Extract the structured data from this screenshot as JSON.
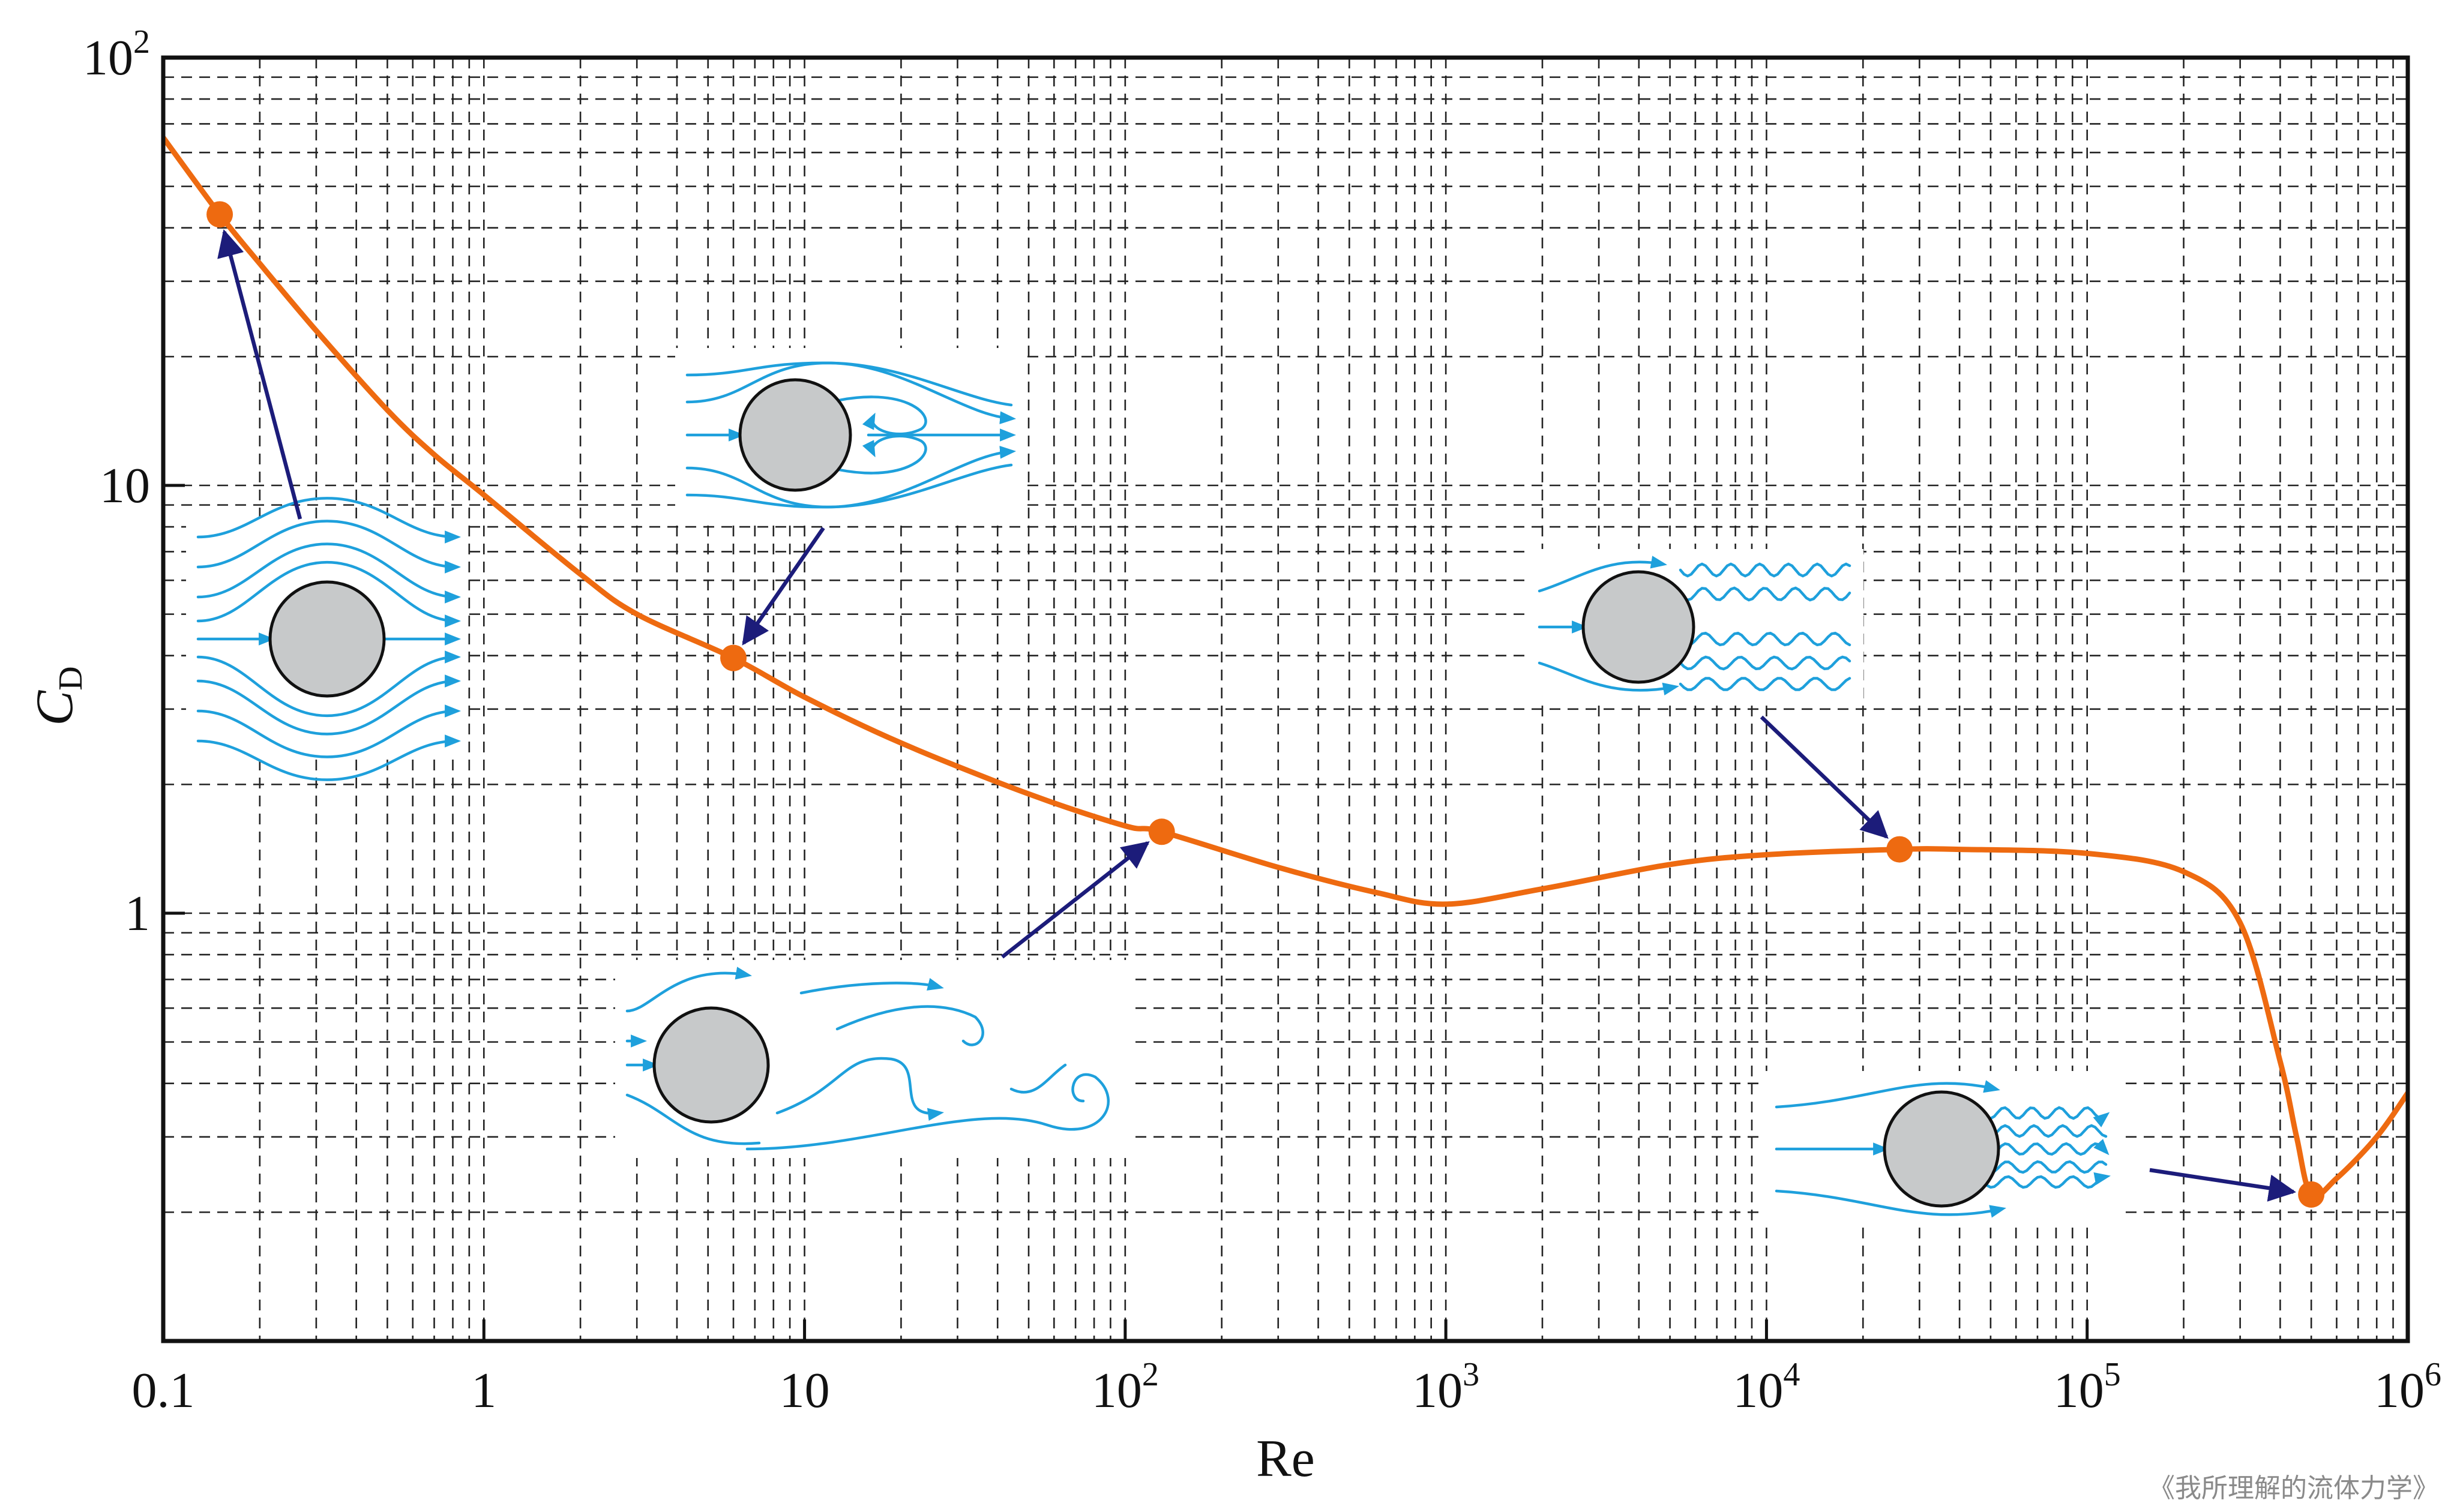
{
  "colors": {
    "curve": "#ee6a10",
    "point": "#ee6a10",
    "arrow": "#1c1c7a",
    "streamline": "#1ea0dc",
    "cylinder_fill": "#c7c9ca",
    "grid": "#222222"
  },
  "chart_data": {
    "type": "line",
    "scale": {
      "x": "log",
      "y": "log"
    },
    "xlim": [
      0.1,
      1000000
    ],
    "ylim": [
      0.1,
      100
    ],
    "grid": true,
    "xlabel": "Re",
    "ylabel": "C",
    "ylabel_subscript": "D",
    "xticks": [
      {
        "value": 0.1,
        "base": "0.1",
        "exp": ""
      },
      {
        "value": 1,
        "base": "1",
        "exp": ""
      },
      {
        "value": 10,
        "base": "10",
        "exp": ""
      },
      {
        "value": 100,
        "base": "10",
        "exp": "2"
      },
      {
        "value": 1000,
        "base": "10",
        "exp": "3"
      },
      {
        "value": 10000,
        "base": "10",
        "exp": "4"
      },
      {
        "value": 100000,
        "base": "10",
        "exp": "5"
      },
      {
        "value": 1000000,
        "base": "10",
        "exp": "6"
      }
    ],
    "yticks": [
      {
        "value": 1,
        "base": "1",
        "exp": ""
      },
      {
        "value": 10,
        "base": "10",
        "exp": ""
      },
      {
        "value": 100,
        "base": "10",
        "exp": "2"
      }
    ],
    "series": [
      {
        "points": [
          [
            0.1,
            65
          ],
          [
            0.15,
            43
          ],
          [
            0.2,
            33
          ],
          [
            0.3,
            23
          ],
          [
            0.5,
            15
          ],
          [
            0.7,
            11.8
          ],
          [
            1,
            9.5
          ],
          [
            2,
            6.2
          ],
          [
            3,
            5
          ],
          [
            6,
            3.95
          ],
          [
            10,
            3.2
          ],
          [
            20,
            2.5
          ],
          [
            50,
            1.9
          ],
          [
            100,
            1.6
          ],
          [
            130,
            1.55
          ],
          [
            300,
            1.28
          ],
          [
            600,
            1.12
          ],
          [
            1000,
            1.05
          ],
          [
            2000,
            1.14
          ],
          [
            5000,
            1.3
          ],
          [
            10000,
            1.37
          ],
          [
            26000,
            1.41
          ],
          [
            40000,
            1.41
          ],
          [
            100000,
            1.38
          ],
          [
            200000,
            1.25
          ],
          [
            300000,
            0.95
          ],
          [
            400000,
            0.45
          ],
          [
            450000,
            0.3
          ],
          [
            500000,
            0.22
          ],
          [
            600000,
            0.24
          ],
          [
            800000,
            0.3
          ],
          [
            1000000,
            0.38
          ]
        ]
      }
    ],
    "highlighted_points": [
      {
        "x": 0.15,
        "y": 43
      },
      {
        "x": 6,
        "y": 3.95
      },
      {
        "x": 130,
        "y": 1.55
      },
      {
        "x": 26000,
        "y": 1.41
      },
      {
        "x": 500000,
        "y": 0.22
      }
    ]
  },
  "illustrations": [
    {
      "id": "creeping-flow",
      "arrow_to_point": 0
    },
    {
      "id": "separated-eddies",
      "arrow_to_point": 1
    },
    {
      "id": "vortex-street",
      "arrow_to_point": 2
    },
    {
      "id": "laminar-boundary-layer-turbulent-wake",
      "arrow_to_point": 3
    },
    {
      "id": "turbulent-boundary-layer-narrow-wake",
      "arrow_to_point": 4
    }
  ],
  "credit": "《我所理解的流体力学》"
}
